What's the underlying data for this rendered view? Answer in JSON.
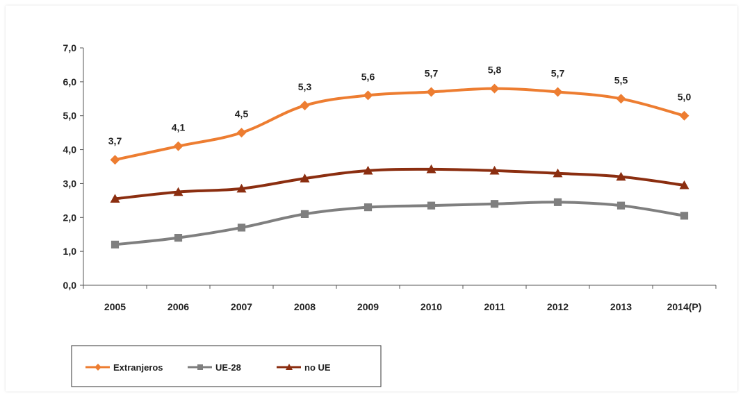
{
  "chart_data": {
    "type": "line",
    "title": "",
    "xlabel": "",
    "ylabel": "",
    "categories": [
      "2005",
      "2006",
      "2007",
      "2008",
      "2009",
      "2010",
      "2011",
      "2012",
      "2013",
      "2014(P)"
    ],
    "y_ticks": [
      "0,0",
      "1,0",
      "2,0",
      "3,0",
      "4,0",
      "5,0",
      "6,0",
      "7,0"
    ],
    "ylim": [
      0,
      7
    ],
    "grid": false,
    "legend_position": "bottom-left",
    "series": [
      {
        "name": "Extranjeros",
        "color": "#ed7d31",
        "marker": "diamond",
        "values": [
          3.7,
          4.1,
          4.5,
          5.3,
          5.6,
          5.7,
          5.8,
          5.7,
          5.5,
          5.0
        ],
        "data_labels": [
          "3,7",
          "4,1",
          "4,5",
          "5,3",
          "5,6",
          "5,7",
          "5,8",
          "5,7",
          "5,5",
          "5,0"
        ]
      },
      {
        "name": "UE-28",
        "color": "#7f7f7f",
        "marker": "square",
        "values": [
          1.2,
          1.4,
          1.7,
          2.1,
          2.3,
          2.35,
          2.4,
          2.45,
          2.35,
          2.05
        ]
      },
      {
        "name": "no UE",
        "color": "#8b2e10",
        "marker": "triangle",
        "values": [
          2.55,
          2.75,
          2.85,
          3.15,
          3.38,
          3.42,
          3.38,
          3.3,
          3.2,
          2.95
        ]
      }
    ]
  }
}
